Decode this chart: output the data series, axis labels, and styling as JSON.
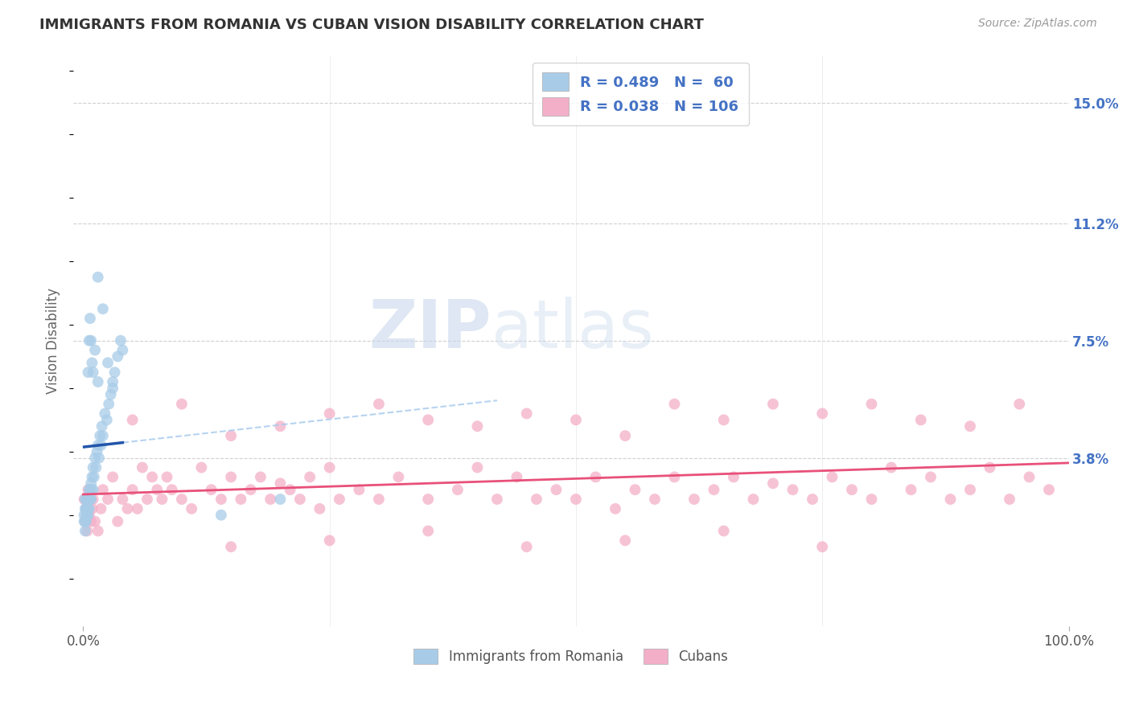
{
  "title": "IMMIGRANTS FROM ROMANIA VS CUBAN VISION DISABILITY CORRELATION CHART",
  "source": "Source: ZipAtlas.com",
  "ylabel": "Vision Disability",
  "xlabel": "",
  "xlim": [
    -0.01,
    1.0
  ],
  "ylim": [
    -0.015,
    0.165
  ],
  "xtick_positions": [
    0.0,
    1.0
  ],
  "xticklabels": [
    "0.0%",
    "100.0%"
  ],
  "ytick_positions": [
    0.038,
    0.075,
    0.112,
    0.15
  ],
  "yticklabels": [
    "3.8%",
    "7.5%",
    "11.2%",
    "15.0%"
  ],
  "romania_R": 0.489,
  "romania_N": 60,
  "cuban_R": 0.038,
  "cuban_N": 106,
  "romania_color": "#a8cce8",
  "cuban_color": "#f4afc8",
  "romania_line_color": "#2255aa",
  "cuban_line_color": "#e8507a",
  "romania_dash_color": "#aaccee",
  "legend_romania_label": "Immigrants from Romania",
  "legend_cuban_label": "Cubans",
  "watermark_zip": "ZIP",
  "watermark_atlas": "atlas",
  "background_color": "#ffffff",
  "grid_color": "#d0d0d0",
  "title_color": "#333333",
  "source_color": "#999999",
  "ytick_color": "#4472c4",
  "legend_text_color": "#4472c4",
  "romania_x": [
    0.001,
    0.001,
    0.002,
    0.002,
    0.002,
    0.002,
    0.003,
    0.003,
    0.003,
    0.003,
    0.004,
    0.004,
    0.004,
    0.005,
    0.005,
    0.005,
    0.006,
    0.006,
    0.006,
    0.007,
    0.007,
    0.008,
    0.008,
    0.009,
    0.009,
    0.01,
    0.01,
    0.011,
    0.012,
    0.013,
    0.014,
    0.015,
    0.016,
    0.017,
    0.018,
    0.019,
    0.02,
    0.022,
    0.024,
    0.026,
    0.028,
    0.03,
    0.032,
    0.035,
    0.038,
    0.04,
    0.015,
    0.02,
    0.025,
    0.03,
    0.005,
    0.006,
    0.007,
    0.008,
    0.009,
    0.01,
    0.012,
    0.015,
    0.2,
    0.14
  ],
  "romania_y": [
    0.02,
    0.018,
    0.022,
    0.015,
    0.025,
    0.018,
    0.02,
    0.022,
    0.018,
    0.025,
    0.022,
    0.025,
    0.02,
    0.025,
    0.02,
    0.022,
    0.025,
    0.028,
    0.022,
    0.025,
    0.028,
    0.025,
    0.03,
    0.028,
    0.032,
    0.028,
    0.035,
    0.032,
    0.038,
    0.035,
    0.04,
    0.042,
    0.038,
    0.045,
    0.042,
    0.048,
    0.045,
    0.052,
    0.05,
    0.055,
    0.058,
    0.062,
    0.065,
    0.07,
    0.075,
    0.072,
    0.095,
    0.085,
    0.068,
    0.06,
    0.065,
    0.075,
    0.082,
    0.075,
    0.068,
    0.065,
    0.072,
    0.062,
    0.025,
    0.02
  ],
  "cuban_x": [
    0.001,
    0.002,
    0.003,
    0.004,
    0.005,
    0.006,
    0.007,
    0.008,
    0.009,
    0.01,
    0.012,
    0.015,
    0.018,
    0.02,
    0.025,
    0.03,
    0.035,
    0.04,
    0.045,
    0.05,
    0.055,
    0.06,
    0.065,
    0.07,
    0.075,
    0.08,
    0.085,
    0.09,
    0.1,
    0.11,
    0.12,
    0.13,
    0.14,
    0.15,
    0.16,
    0.17,
    0.18,
    0.19,
    0.2,
    0.21,
    0.22,
    0.23,
    0.24,
    0.25,
    0.26,
    0.28,
    0.3,
    0.32,
    0.35,
    0.38,
    0.4,
    0.42,
    0.44,
    0.46,
    0.48,
    0.5,
    0.52,
    0.54,
    0.56,
    0.58,
    0.6,
    0.62,
    0.64,
    0.66,
    0.68,
    0.7,
    0.72,
    0.74,
    0.76,
    0.78,
    0.8,
    0.82,
    0.84,
    0.86,
    0.88,
    0.9,
    0.92,
    0.94,
    0.96,
    0.98,
    0.05,
    0.1,
    0.15,
    0.2,
    0.25,
    0.3,
    0.35,
    0.4,
    0.45,
    0.5,
    0.55,
    0.6,
    0.65,
    0.7,
    0.75,
    0.8,
    0.85,
    0.9,
    0.95,
    0.15,
    0.25,
    0.35,
    0.45,
    0.55,
    0.65,
    0.75
  ],
  "cuban_y": [
    0.025,
    0.018,
    0.022,
    0.015,
    0.028,
    0.02,
    0.025,
    0.018,
    0.022,
    0.025,
    0.018,
    0.015,
    0.022,
    0.028,
    0.025,
    0.032,
    0.018,
    0.025,
    0.022,
    0.028,
    0.022,
    0.035,
    0.025,
    0.032,
    0.028,
    0.025,
    0.032,
    0.028,
    0.025,
    0.022,
    0.035,
    0.028,
    0.025,
    0.032,
    0.025,
    0.028,
    0.032,
    0.025,
    0.03,
    0.028,
    0.025,
    0.032,
    0.022,
    0.035,
    0.025,
    0.028,
    0.025,
    0.032,
    0.025,
    0.028,
    0.035,
    0.025,
    0.032,
    0.025,
    0.028,
    0.025,
    0.032,
    0.022,
    0.028,
    0.025,
    0.032,
    0.025,
    0.028,
    0.032,
    0.025,
    0.03,
    0.028,
    0.025,
    0.032,
    0.028,
    0.025,
    0.035,
    0.028,
    0.032,
    0.025,
    0.028,
    0.035,
    0.025,
    0.032,
    0.028,
    0.05,
    0.055,
    0.045,
    0.048,
    0.052,
    0.055,
    0.05,
    0.048,
    0.052,
    0.05,
    0.045,
    0.055,
    0.05,
    0.055,
    0.052,
    0.055,
    0.05,
    0.048,
    0.055,
    0.01,
    0.012,
    0.015,
    0.01,
    0.012,
    0.015,
    0.01
  ]
}
